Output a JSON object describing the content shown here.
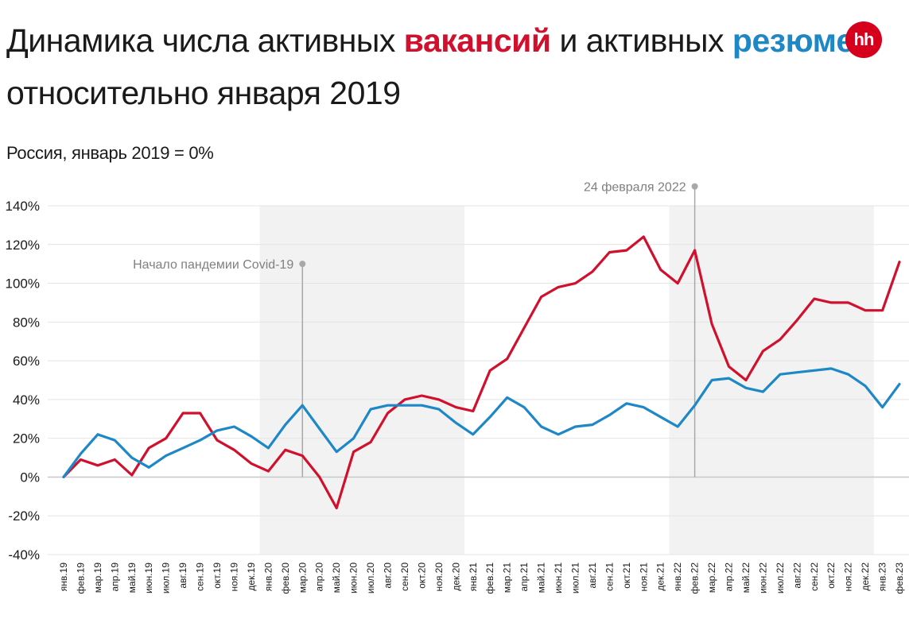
{
  "header": {
    "title_part1": "Динамика числа активных ",
    "title_highlight1": "вакансий",
    "title_part2": " и активных ",
    "title_highlight2": "резюме",
    "title_line2": "относительно января 2019",
    "subtitle": "Россия, январь 2019 = 0%",
    "logo_text": "hh"
  },
  "colors": {
    "vacancies": "#d0102c",
    "resumes": "#1e88c7",
    "shade": "#f2f2f2",
    "grid": "#e4e4e4"
  },
  "chart_data": {
    "type": "line",
    "title": "Динамика числа активных вакансий и активных резюме относительно января 2019",
    "subtitle": "Россия, январь 2019 = 0%",
    "xlabel": "",
    "ylabel": "",
    "ylim": [
      -40,
      140
    ],
    "yticks": [
      140,
      120,
      100,
      80,
      60,
      40,
      20,
      0,
      -20,
      -40
    ],
    "ytick_labels": [
      "140%",
      "120%",
      "100%",
      "80%",
      "60%",
      "40%",
      "20%",
      "0%",
      "-20%",
      "-40%"
    ],
    "grid": true,
    "categories": [
      "янв.19",
      "фев.19",
      "мар.19",
      "апр.19",
      "май.19",
      "июн.19",
      "июл.19",
      "авг.19",
      "сен.19",
      "окт.19",
      "ноя.19",
      "дек.19",
      "янв.20",
      "фев.20",
      "мар.20",
      "апр.20",
      "май.20",
      "июн.20",
      "июл.20",
      "авг.20",
      "сен.20",
      "окт.20",
      "ноя.20",
      "дек.20",
      "янв.21",
      "фев.21",
      "мар.21",
      "апр.21",
      "май.21",
      "июн.21",
      "июл.21",
      "авг.21",
      "сен.21",
      "окт.21",
      "ноя.21",
      "дек.21",
      "янв.22",
      "фев.22",
      "мар.22",
      "апр.22",
      "май.22",
      "июн.22",
      "июл.22",
      "авг.22",
      "сен.22",
      "окт.22",
      "ноя.22",
      "дек.22",
      "янв.23",
      "фев.23"
    ],
    "series": [
      {
        "name": "вакансии",
        "color": "#d0102c",
        "values": [
          0,
          9,
          6,
          9,
          1,
          15,
          20,
          33,
          33,
          19,
          14,
          7,
          3,
          14,
          11,
          0,
          -16,
          13,
          18,
          33,
          40,
          42,
          40,
          36,
          34,
          55,
          61,
          77,
          93,
          98,
          100,
          106,
          116,
          117,
          124,
          107,
          100,
          117,
          79,
          57,
          50,
          65,
          71,
          81,
          92,
          90,
          90,
          86,
          86,
          111
        ]
      },
      {
        "name": "резюме",
        "color": "#1e88c7",
        "values": [
          0,
          12,
          22,
          19,
          10,
          5,
          11,
          15,
          19,
          24,
          26,
          21,
          15,
          27,
          37,
          25,
          13,
          20,
          35,
          37,
          37,
          37,
          35,
          28,
          22,
          31,
          41,
          36,
          26,
          22,
          26,
          27,
          32,
          38,
          36,
          31,
          26,
          37,
          50,
          51,
          46,
          44,
          53,
          54,
          55,
          56,
          53,
          47,
          36,
          48
        ]
      }
    ],
    "shaded_periods": [
      {
        "from": "янв.20",
        "to": "дек.20"
      },
      {
        "from": "янв.22",
        "to": "дек.22"
      }
    ],
    "annotations": [
      {
        "text": "Начало пандемии Covid-19",
        "at": "мар.20",
        "y": 110
      },
      {
        "text": "24 февраля 2022",
        "at": "фев.22",
        "y": 150
      }
    ]
  }
}
